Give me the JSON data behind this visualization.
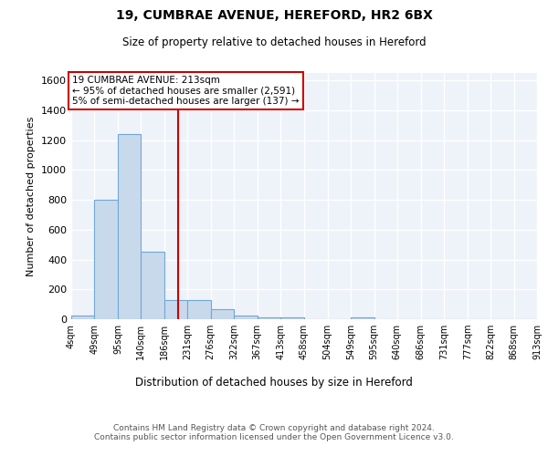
{
  "title_line1": "19, CUMBRAE AVENUE, HEREFORD, HR2 6BX",
  "title_line2": "Size of property relative to detached houses in Hereford",
  "xlabel": "Distribution of detached houses by size in Hereford",
  "ylabel": "Number of detached properties",
  "footer_line1": "Contains HM Land Registry data © Crown copyright and database right 2024.",
  "footer_line2": "Contains public sector information licensed under the Open Government Licence v3.0.",
  "annotation_line1": "19 CUMBRAE AVENUE: 213sqm",
  "annotation_line2": "← 95% of detached houses are smaller (2,591)",
  "annotation_line3": "5% of semi-detached houses are larger (137) →",
  "property_value": 213,
  "bin_edges": [
    4,
    49,
    95,
    140,
    186,
    231,
    276,
    322,
    367,
    413,
    458,
    504,
    549,
    595,
    640,
    686,
    731,
    777,
    822,
    868,
    913
  ],
  "bar_heights": [
    25,
    800,
    1240,
    450,
    130,
    130,
    65,
    25,
    15,
    15,
    0,
    0,
    15,
    0,
    0,
    0,
    0,
    0,
    0,
    0
  ],
  "bar_color": "#c9d9ec",
  "bar_edge_color": "#6fa8d6",
  "vline_color": "#cc0000",
  "vline_x": 213,
  "annotation_box_edge_color": "#cc0000",
  "background_color": "#eef2f9",
  "grid_color": "#ffffff",
  "ylim": [
    0,
    1650
  ],
  "yticks": [
    0,
    200,
    400,
    600,
    800,
    1000,
    1200,
    1400,
    1600
  ]
}
